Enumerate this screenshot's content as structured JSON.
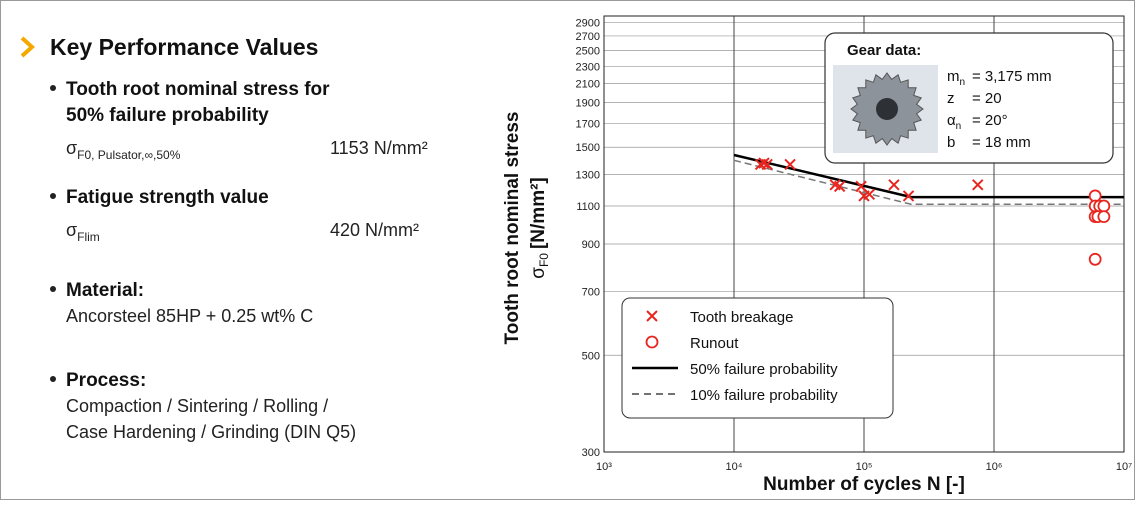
{
  "header": {
    "title": "Key Performance Values"
  },
  "bullets": [
    {
      "lines": [
        "Tooth root nominal stress for",
        "50% failure probability"
      ],
      "symbol": "σ",
      "subscript": "F0, Pulsator,∞,50%",
      "value": "1153 N/mm²"
    },
    {
      "lines": [
        "Fatigue strength value"
      ],
      "symbol": "σ",
      "subscript": "Flim",
      "value": "420 N/mm²"
    },
    {
      "lines": [
        "Material:"
      ],
      "details": [
        "Ancorsteel 85HP + 0.25 wt% C"
      ]
    },
    {
      "lines": [
        "Process:"
      ],
      "details": [
        "Compaction / Sintering / Rolling /",
        "Case Hardening / Grinding (DIN Q5)"
      ]
    }
  ],
  "chart_data": {
    "type": "scatter",
    "x_label": "Number of cycles N [-]",
    "y_label": "Tooth root nominal stress",
    "y_symbol": "σ",
    "y_symbol_sub": "F0",
    "y_unit": "[N/mm²]",
    "log_x": true,
    "log_y": true,
    "grid": true,
    "legend": "lower left",
    "xlim": [
      1000,
      10000000
    ],
    "xticks": [
      {
        "value": 1000,
        "label": "10³"
      },
      {
        "value": 10000,
        "label": "10⁴"
      },
      {
        "value": 100000,
        "label": "10⁵"
      },
      {
        "value": 1000000,
        "label": "10⁶"
      },
      {
        "value": 10000000,
        "label": "10⁷"
      }
    ],
    "ylim": [
      300,
      3000
    ],
    "yticks": [
      300,
      500,
      700,
      900,
      1100,
      1300,
      1500,
      1700,
      1900,
      2100,
      2300,
      2500,
      2700,
      2900
    ],
    "series": [
      {
        "name": "Tooth breakage",
        "marker": "x",
        "color": "#e8261f",
        "x": [
          16000,
          17000,
          18000,
          27000,
          60000,
          65000,
          95000,
          100000,
          110000,
          170000,
          220000,
          750000
        ],
        "values": [
          1370,
          1380,
          1370,
          1370,
          1230,
          1220,
          1220,
          1160,
          1170,
          1230,
          1160,
          1230
        ]
      },
      {
        "name": "Runout",
        "marker": "o",
        "color": "#e8261f",
        "x": [
          6000000,
          6000000,
          6000000,
          6500000,
          7000000,
          6300000,
          7000000,
          6000000
        ],
        "values": [
          1160,
          1100,
          1040,
          1100,
          1100,
          1040,
          1040,
          830
        ]
      },
      {
        "name": "50% failure probability",
        "line": "solid",
        "color": "#000000",
        "x": [
          10000,
          230000,
          10000000
        ],
        "values": [
          1440,
          1153,
          1153
        ]
      },
      {
        "name": "10% failure probability",
        "line": "dashed",
        "color": "#777777",
        "x": [
          10000,
          230000,
          10000000
        ],
        "values": [
          1400,
          1110,
          1110
        ]
      }
    ],
    "annotation": {
      "title": "Gear data:",
      "items": [
        {
          "symbol": "m",
          "sub": "n",
          "value": "= 3,175 mm"
        },
        {
          "symbol": "z",
          "value": "= 20"
        },
        {
          "symbol": "α",
          "sub": "n",
          "value": "= 20°"
        },
        {
          "symbol": "b",
          "value": "= 18 mm"
        }
      ]
    }
  }
}
